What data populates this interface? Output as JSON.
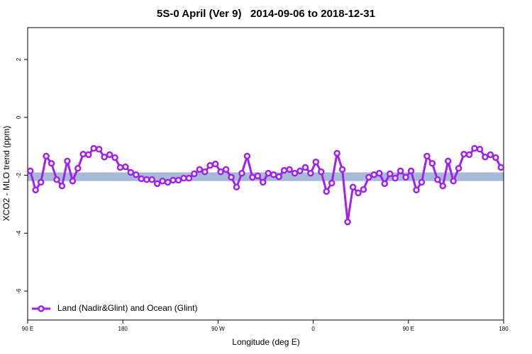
{
  "chart_data": {
    "type": "line",
    "title": "5S-0 April (Ver 9)   2014-09-06 to 2018-12-31",
    "x_label": "Longitude (deg E)",
    "y_label": "XCO2 - MLO trend (ppm)",
    "xlim": [
      90,
      540
    ],
    "xticks": [
      {
        "value": 90,
        "label": "90 E"
      },
      {
        "value": 180,
        "label": "180"
      },
      {
        "value": 270,
        "label": "90 W"
      },
      {
        "value": 360,
        "label": "0"
      },
      {
        "value": 450,
        "label": "90 E"
      },
      {
        "value": 540,
        "label": "180"
      }
    ],
    "ylim": [
      -7,
      3.1
    ],
    "yticks": [
      2,
      0,
      -2,
      -4,
      -6
    ],
    "band": [
      -2.2,
      -1.9
    ],
    "band_color": "#a7bad8",
    "legend": "bottom-left",
    "x": [
      92.5,
      97.5,
      102.5,
      107.5,
      112.5,
      117.5,
      122.5,
      127.5,
      132.5,
      137.5,
      142.5,
      147.5,
      152.5,
      157.5,
      162.5,
      167.5,
      172.5,
      177.5,
      182.5,
      187.5,
      192.5,
      197.5,
      202.5,
      207.5,
      212.5,
      217.5,
      222.5,
      227.5,
      232.5,
      237.5,
      242.5,
      247.5,
      252.5,
      257.5,
      262.5,
      267.5,
      272.5,
      277.5,
      282.5,
      287.5,
      292.5,
      297.5,
      302.5,
      307.5,
      312.5,
      317.5,
      322.5,
      327.5,
      332.5,
      337.5,
      342.5,
      347.5,
      352.5,
      357.5,
      362.5,
      367.5,
      372.5,
      377.5,
      382.5,
      387.5,
      392.5,
      397.5,
      402.5,
      407.5,
      412.5,
      417.5,
      422.5,
      427.5,
      432.5,
      437.5,
      442.5,
      447.5,
      452.5,
      457.5,
      462.5,
      467.5,
      472.5,
      477.5,
      482.5,
      487.5,
      492.5,
      497.5,
      502.5,
      507.5,
      512.5,
      517.5,
      522.5,
      527.5,
      532.5,
      537.5
    ],
    "series": [
      {
        "name": "Land (Nadir&Glint) and Ocean (Glint)",
        "color": "#a020f0",
        "values": [
          -1.85,
          -2.51,
          -2.24,
          -1.34,
          -1.59,
          -2.15,
          -2.37,
          -1.51,
          -2.2,
          -1.76,
          -1.27,
          -1.29,
          -1.07,
          -1.1,
          -1.37,
          -1.29,
          -1.39,
          -1.73,
          -1.71,
          -1.9,
          -1.98,
          -2.12,
          -2.15,
          -2.15,
          -2.29,
          -2.2,
          -2.24,
          -2.17,
          -2.17,
          -2.1,
          -2.1,
          -1.95,
          -1.8,
          -1.88,
          -1.66,
          -1.61,
          -1.88,
          -1.8,
          -2.07,
          -2.41,
          -1.93,
          -1.34,
          -2.07,
          -2.02,
          -2.24,
          -1.93,
          -1.98,
          -2.05,
          -1.83,
          -1.8,
          -1.93,
          -1.85,
          -1.73,
          -1.93,
          -1.54,
          -1.88,
          -2.56,
          -2.27,
          -1.24,
          -1.8,
          -3.61,
          -2.41,
          -2.61,
          -2.49,
          -2.07,
          -1.98,
          -1.93,
          -2.29,
          -1.95,
          -2.1,
          -1.85,
          -2.07,
          -1.85,
          -2.51,
          -2.24,
          -1.34,
          -1.59,
          -2.15,
          -2.37,
          -1.51,
          -2.2,
          -1.76,
          -1.27,
          -1.29,
          -1.07,
          -1.1,
          -1.37,
          -1.29,
          -1.39,
          -1.73
        ]
      }
    ]
  }
}
